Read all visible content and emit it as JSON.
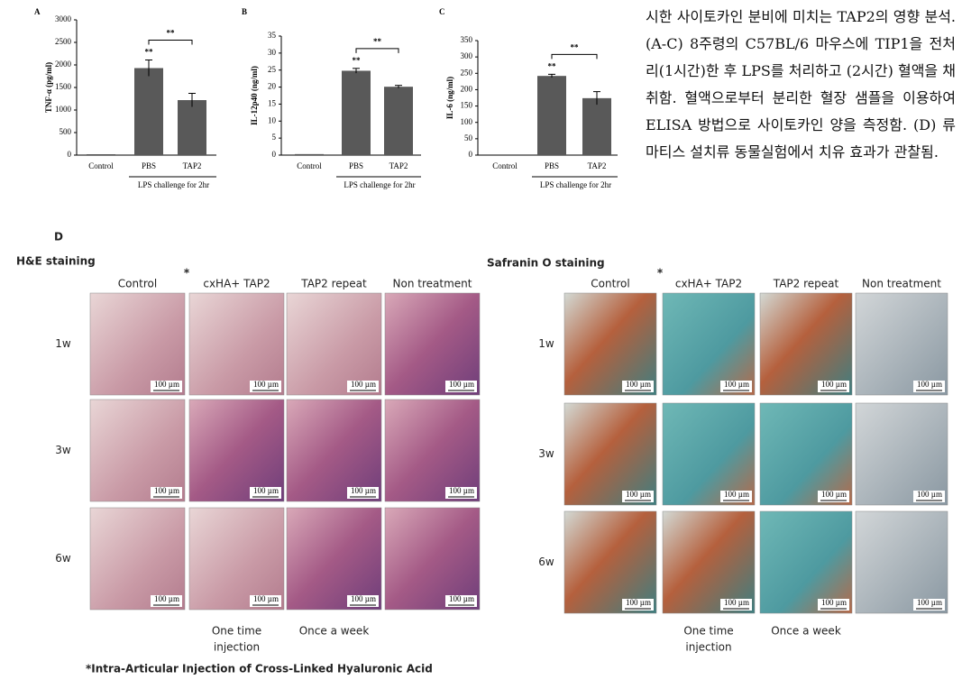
{
  "chart_data": [
    {
      "type": "bar",
      "panel": "A",
      "ylabel": "TNF-α (pg/ml)",
      "categories": [
        "Control",
        "PBS",
        "TAP2"
      ],
      "values": [
        20,
        1930,
        1220
      ],
      "errors": [
        0,
        180,
        150
      ],
      "color": "#595959",
      "ylim": [
        0,
        3000
      ],
      "yticks": [
        0,
        500,
        1000,
        1500,
        2000,
        2500,
        3000
      ],
      "sig_label": "**",
      "group_label": "LPS challenge for 2hr"
    },
    {
      "type": "bar",
      "panel": "B",
      "ylabel": "IL-12p40 (ng/ml)",
      "categories": [
        "Control",
        "PBS",
        "TAP2"
      ],
      "values": [
        0.3,
        24.8,
        20.1
      ],
      "errors": [
        0,
        0.7,
        0.4
      ],
      "color": "#595959",
      "ylim": [
        0,
        35
      ],
      "yticks": [
        0,
        5,
        10,
        15,
        20,
        25,
        30,
        35
      ],
      "sig_label": "**",
      "group_label": "LPS challenge for 2hr"
    },
    {
      "type": "bar",
      "panel": "C",
      "ylabel": "IL-6 (ng/ml)",
      "categories": [
        "Control",
        "PBS",
        "TAP2"
      ],
      "values": [
        0,
        242,
        174
      ],
      "errors": [
        0,
        5,
        20
      ],
      "color": "#595959",
      "ylim": [
        0,
        350
      ],
      "yticks": [
        0,
        50,
        100,
        150,
        200,
        250,
        300,
        350
      ],
      "sig_label": "**",
      "group_label": "LPS challenge for 2hr"
    }
  ],
  "caption": "시한 사이토카인 분비에 미치는 TAP2의 영향 분석. (A-C) 8주령의 C57BL/6 마우스에 TIP1을 전처리(1시간)한 후 LPS를 처리하고 (2시간) 혈액을 채취함. 혈액으로부터 분리한 혈장 샘플을 이용하여 ELISA 방법으로 사이토카인 양을 측정함. (D) 류마티스 설치류 동물실험에서 치유 효과가 관찰됨.",
  "panel_d": {
    "letter": "D",
    "asterisk": "*",
    "scale_bar": "100 µm",
    "columns": [
      "Control",
      "cxHA+ TAP2",
      "TAP2 repeat",
      "Non treatment"
    ],
    "rows": [
      "1w",
      "3w",
      "6w"
    ],
    "grids": [
      {
        "title": "H&E staining"
      },
      {
        "title": "Safranin O staining"
      }
    ],
    "notes": [
      "One time",
      "injection",
      "Once a week"
    ],
    "footnote": "*Intra-Articular Injection of Cross-Linked Hyaluronic Acid"
  }
}
